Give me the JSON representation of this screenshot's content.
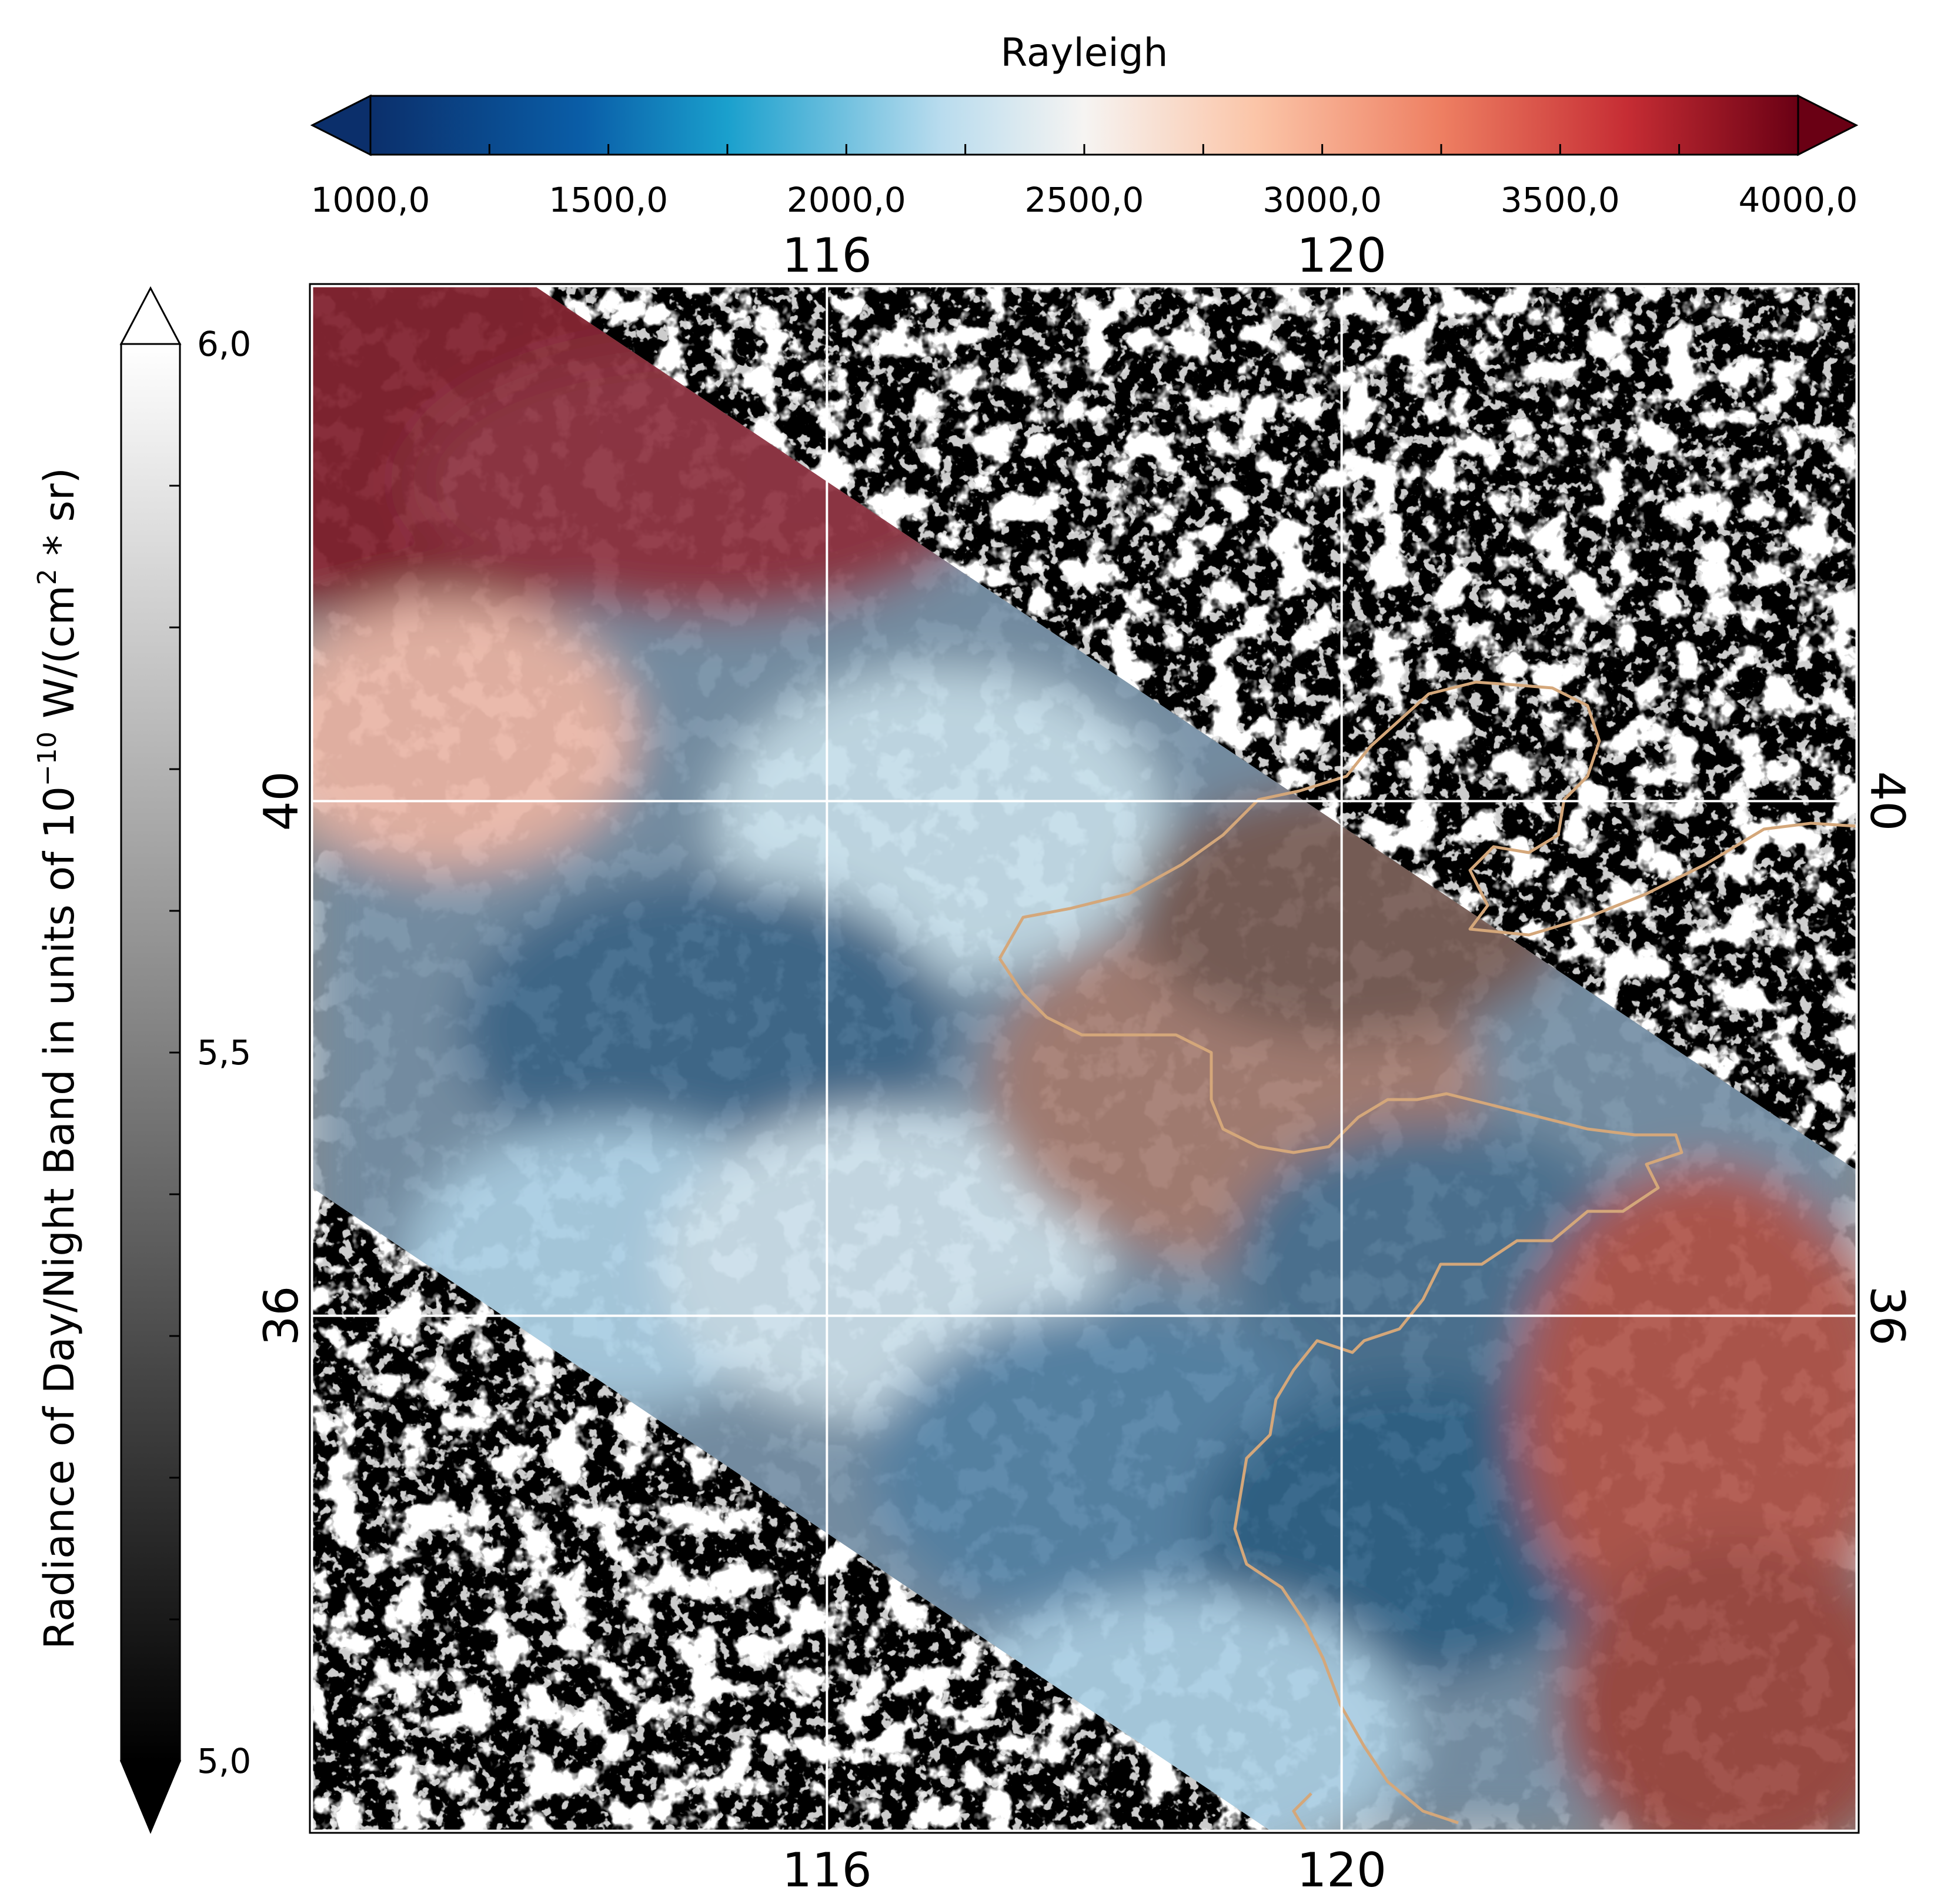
{
  "top_colorbar": {
    "title": "Rayleigh",
    "ticks": [
      "1000,0",
      "1500,0",
      "2000,0",
      "2500,0",
      "3000,0",
      "3500,0",
      "4000,0"
    ],
    "tick_values": [
      1000,
      1500,
      2000,
      2500,
      3000,
      3500,
      4000
    ],
    "range": [
      1000,
      4000
    ],
    "extend": "both",
    "colormap": [
      "#0b2f6b",
      "#0a5ea8",
      "#1aa0cd",
      "#b9dcee",
      "#f6f4f2",
      "#fbc5a8",
      "#ee7f62",
      "#c62d34",
      "#6a0014"
    ]
  },
  "left_colorbar": {
    "title_parts": {
      "prefix": "Radiance of Day/Night Band in units of 10",
      "exponent": "−10",
      "middle": " W/(cm",
      "sq": "2",
      "suffix": " * sr)"
    },
    "ticks": [
      "5,0",
      "5,5",
      "6,0"
    ],
    "tick_values": [
      5.0,
      5.5,
      6.0
    ],
    "range": [
      5.0,
      6.0
    ],
    "extend": "both",
    "colormap": [
      "#000000",
      "#ffffff"
    ]
  },
  "map": {
    "lon_range": [
      112,
      124
    ],
    "lat_range": [
      32,
      44
    ],
    "lon_ticks": [
      "116",
      "120"
    ],
    "lat_ticks": [
      "40",
      "36"
    ],
    "lon_tick_values": [
      116,
      120
    ],
    "lat_tick_values": [
      40,
      36
    ],
    "colors": {
      "night_background": "#000000",
      "city_lights": "#ffffff",
      "coastline": "#d4a77a",
      "grid": "#ffffff"
    }
  }
}
